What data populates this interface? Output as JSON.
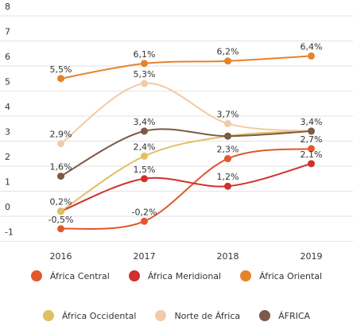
{
  "chart_data": {
    "type": "line",
    "categories": [
      "2016",
      "2017",
      "2018",
      "2019"
    ],
    "ylim": [
      -1,
      8
    ],
    "yticks": [
      -1,
      0,
      1,
      2,
      3,
      4,
      5,
      6,
      7,
      8
    ],
    "grid": true,
    "smooth": true,
    "series": [
      {
        "name": "África Central",
        "color": "#e2572b",
        "values": [
          -0.5,
          -0.2,
          2.3,
          2.7
        ],
        "value_labels": [
          "-0,5%",
          "-0,2%",
          "2,3%",
          "2,7%"
        ]
      },
      {
        "name": "África Meridional",
        "color": "#d2302c",
        "values": [
          0.2,
          1.5,
          1.2,
          2.1
        ],
        "value_labels": [
          null,
          "1,5%",
          "1,2%",
          "2,1%"
        ]
      },
      {
        "name": "África Oriental",
        "color": "#e5832b",
        "values": [
          5.5,
          6.1,
          6.2,
          6.4
        ],
        "value_labels": [
          "5,5%",
          "6,1%",
          "6,2%",
          "6,4%"
        ]
      },
      {
        "name": "África Occidental",
        "color": "#dfc062",
        "values": [
          0.2,
          2.4,
          3.2,
          3.4
        ],
        "value_labels": [
          "0,2%",
          "2,4%",
          null,
          null
        ]
      },
      {
        "name": "Norte de África",
        "color": "#f2cba6",
        "values": [
          2.9,
          5.3,
          3.7,
          3.4
        ],
        "value_labels": [
          "2,9%",
          "5,3%",
          "3,7%",
          null
        ]
      },
      {
        "name": "ÁFRICA",
        "color": "#7b5a47",
        "values": [
          1.6,
          3.4,
          3.2,
          3.4
        ],
        "value_labels": [
          "1,6%",
          "3,4%",
          null,
          "3,4%"
        ]
      }
    ]
  }
}
